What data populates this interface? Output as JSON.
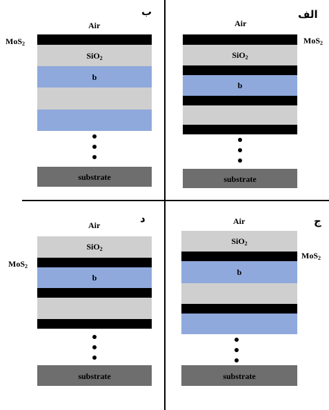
{
  "panels": {
    "alef": {
      "tag": "الف",
      "air": "Air",
      "mos2": "MoS",
      "mos2_sub": "2",
      "sio2": "SiO",
      "sio2_sub": "2",
      "b": "b",
      "substrate": "substrate"
    },
    "be": {
      "tag": "ب",
      "air": "Air",
      "mos2": "MoS",
      "mos2_sub": "2",
      "sio2": "SiO",
      "sio2_sub": "2",
      "b": "b",
      "substrate": "substrate"
    },
    "jim": {
      "tag": "ج",
      "air": "Air",
      "mos2": "MoS",
      "mos2_sub": "2",
      "sio2": "SiO",
      "sio2_sub": "2",
      "b": "b",
      "substrate": "substrate"
    },
    "dal": {
      "tag": "د",
      "air": "Air",
      "mos2": "MoS",
      "mos2_sub": "2",
      "sio2": "SiO",
      "sio2_sub": "2",
      "b": "b",
      "substrate": "substrate"
    }
  },
  "colors": {
    "mos2": "#000000",
    "sio2": "#cfcfcf",
    "b": "#8fa9dc",
    "substrate": "#6e6e6e"
  }
}
